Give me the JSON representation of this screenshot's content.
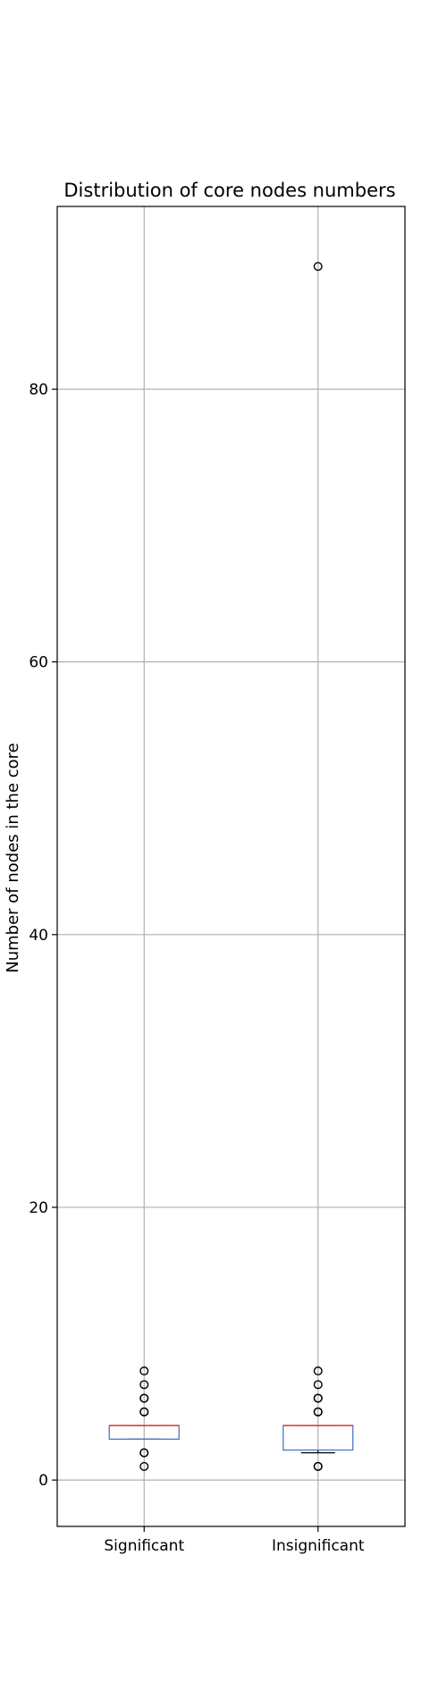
{
  "chart_data": {
    "type": "box",
    "title": "Distribution of core nodes numbers",
    "xlabel": "",
    "ylabel": "Number of nodes in the core",
    "ylim": [
      -3.4,
      93.4
    ],
    "yticks": [
      0,
      20,
      40,
      60,
      80
    ],
    "grid": true,
    "categories": [
      "Significant",
      "Insignificant"
    ],
    "boxes": [
      {
        "category": "Significant",
        "q1": 3,
        "median": 4,
        "q3": 4,
        "whisker_low": 3,
        "whisker_high": 4,
        "outliers": [
          1,
          2,
          2,
          5,
          5,
          6,
          6,
          7,
          8
        ]
      },
      {
        "category": "Insignificant",
        "q1": 2.2,
        "median": 4,
        "q3": 4,
        "whisker_low": 2,
        "whisker_high": 4,
        "outliers": [
          1,
          1,
          5,
          5,
          6,
          6,
          7,
          8,
          89
        ]
      }
    ],
    "colors": {
      "box": "#4a78c4",
      "median": "#e0403a",
      "flier": "#000000",
      "grid": "#b0b0b0"
    }
  }
}
